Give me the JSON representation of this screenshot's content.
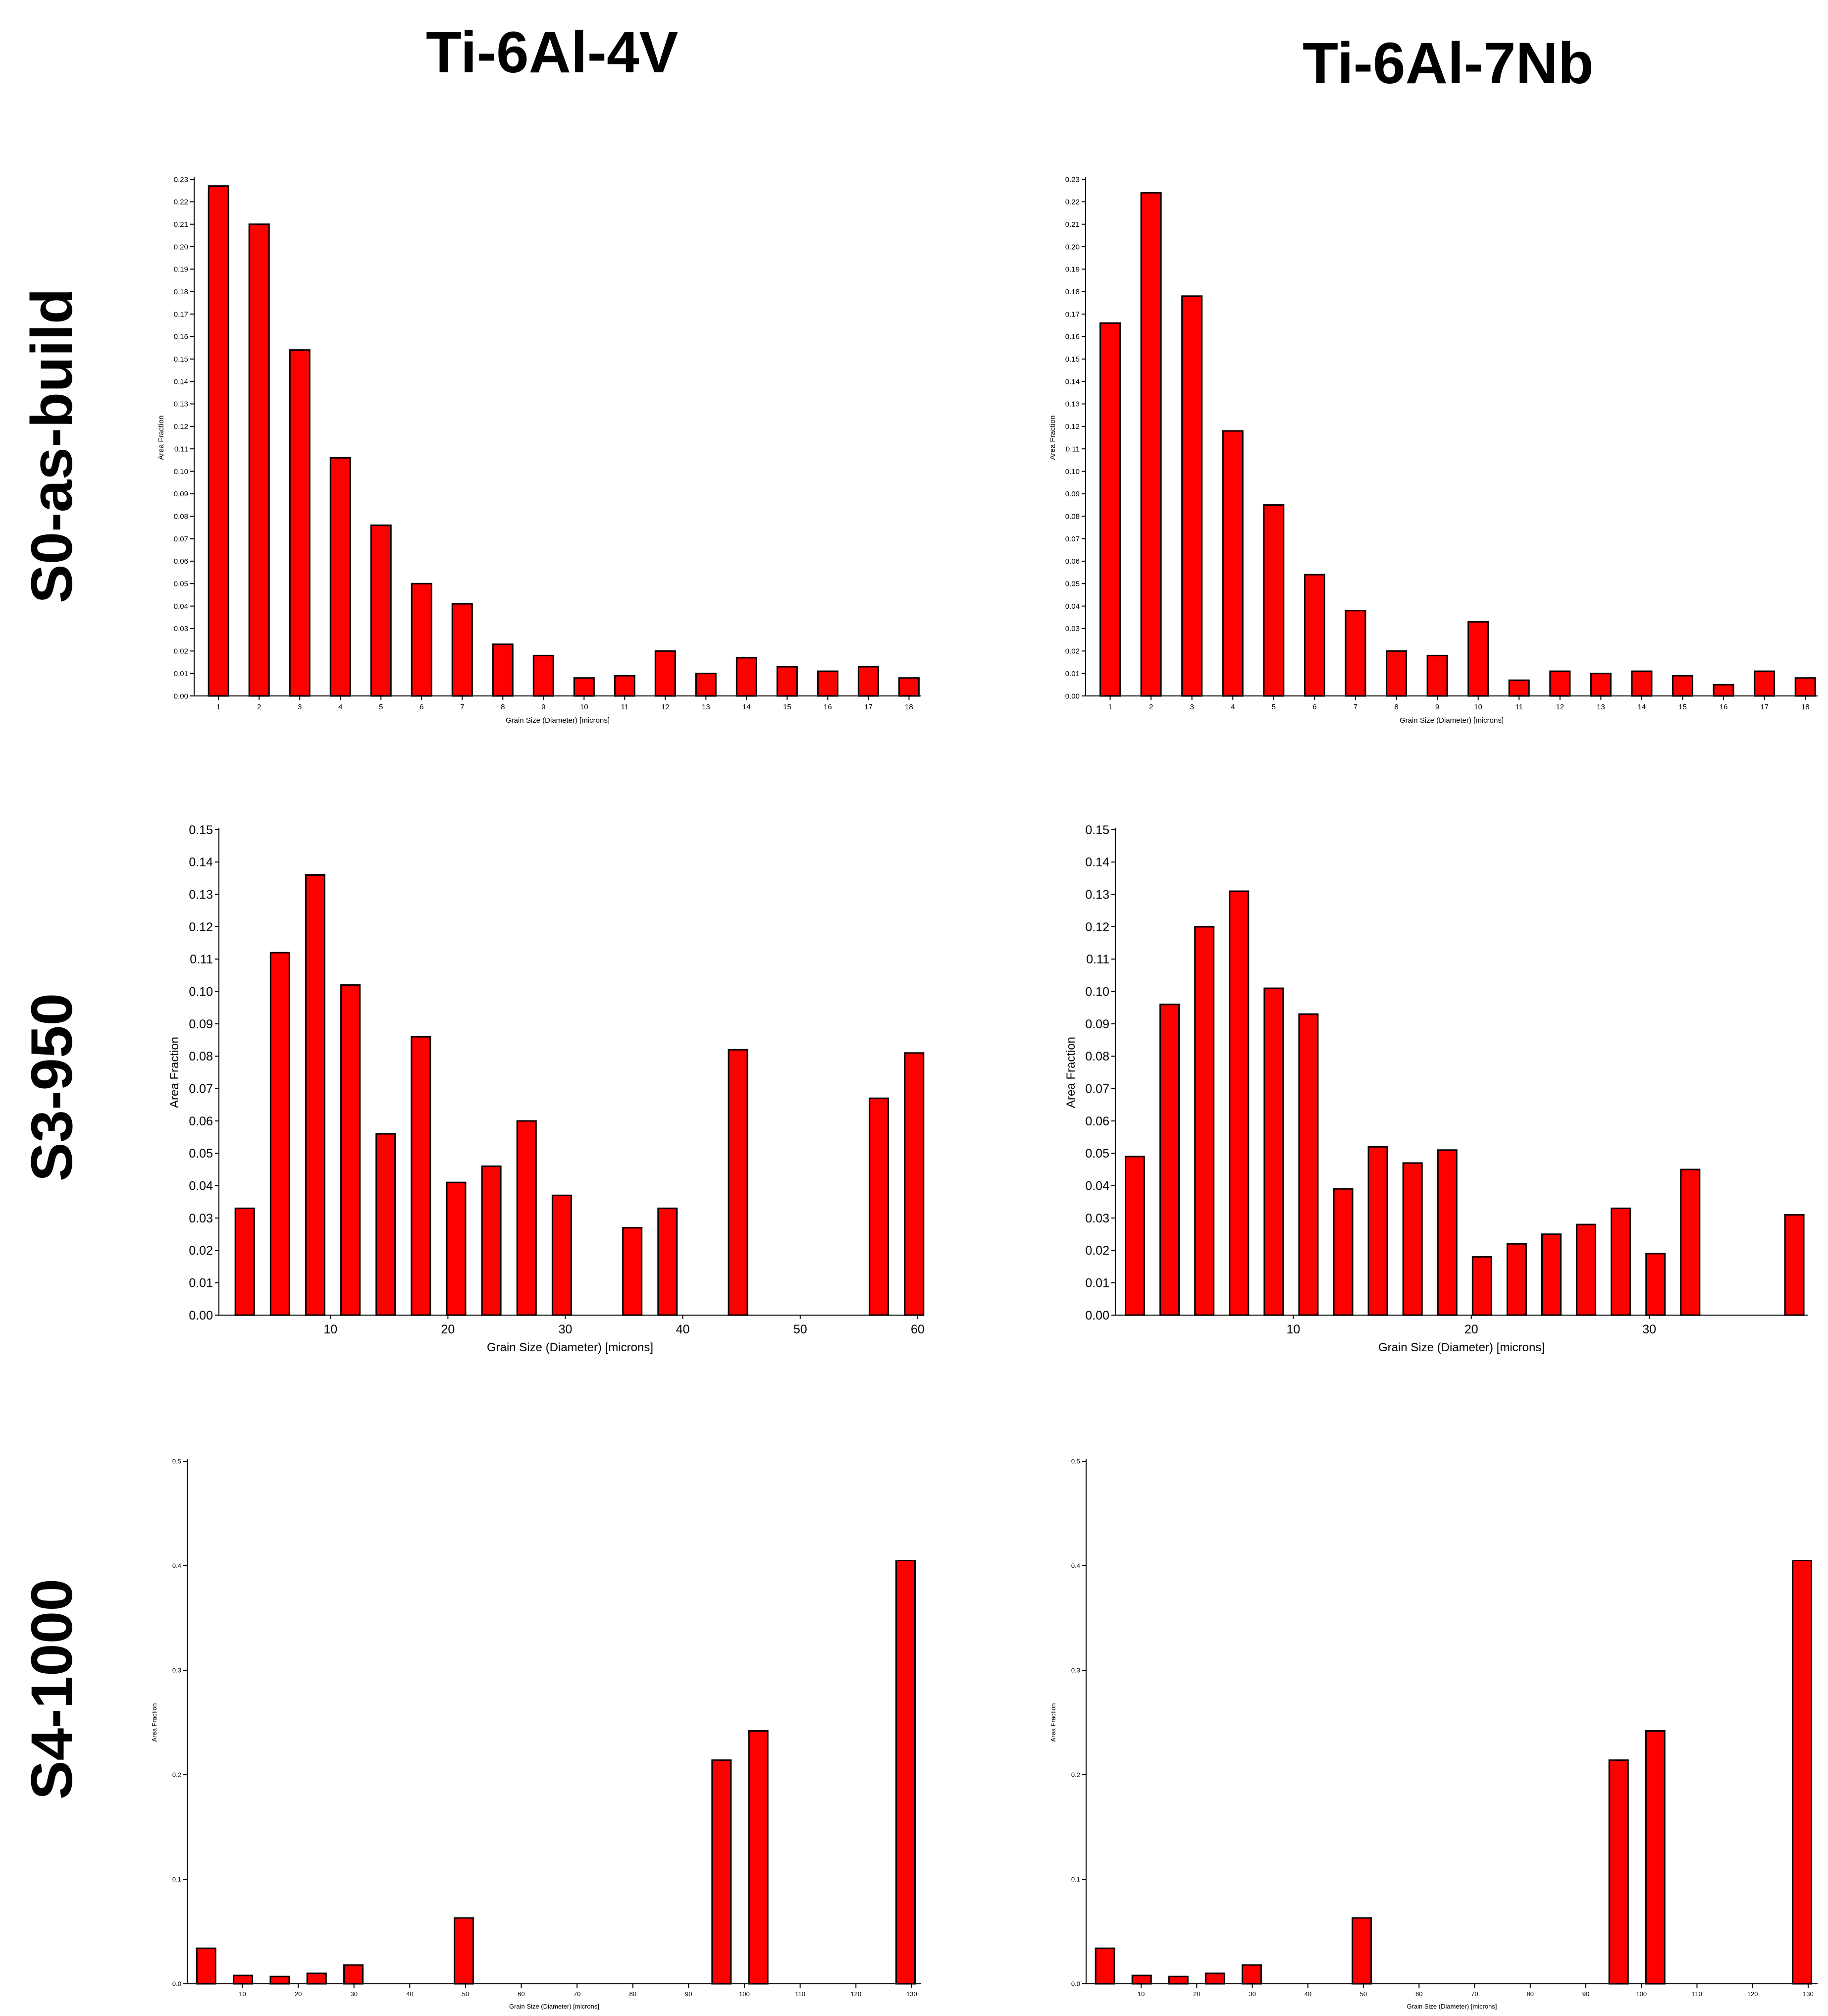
{
  "columns": [
    "Ti-6Al-4V",
    "Ti-6Al-7Nb"
  ],
  "rows": [
    "S0-as-build",
    "S3-950",
    "S4-1000"
  ],
  "colors": {
    "bar": "#ff0000",
    "bar_edge": "#000000",
    "axis": "#000000"
  },
  "chart_data": [
    {
      "type": "bar",
      "panel": "S0-as-build / Ti-6Al-4V",
      "xlabel": "Grain Size (Diameter) [microns]",
      "ylabel": "Area Fraction",
      "x": [
        1,
        2,
        3,
        4,
        5,
        6,
        7,
        8,
        9,
        10,
        11,
        12,
        13,
        14,
        15,
        16,
        17,
        18
      ],
      "values": [
        0.227,
        0.21,
        0.154,
        0.106,
        0.076,
        0.05,
        0.041,
        0.023,
        0.018,
        0.008,
        0.009,
        0.02,
        0.01,
        0.017,
        0.013,
        0.011,
        0.013,
        0.008
      ],
      "xlim": [
        0.4,
        18.3
      ],
      "ylim": [
        0,
        0.23
      ],
      "xticks": [
        1,
        2,
        3,
        4,
        5,
        6,
        7,
        8,
        9,
        10,
        11,
        12,
        13,
        14,
        15,
        16,
        17,
        18
      ],
      "xtick_labels": [
        "1",
        "2",
        "3",
        "4",
        "5",
        "6",
        "7",
        "8",
        "9",
        "10",
        "11",
        "12",
        "13",
        "14",
        "15",
        "16",
        "17",
        "18"
      ],
      "yticks": [
        0,
        0.01,
        0.02,
        0.03,
        0.04,
        0.05,
        0.06,
        0.07,
        0.08,
        0.09,
        0.1,
        0.11,
        0.12,
        0.13,
        0.14,
        0.15,
        0.16,
        0.17,
        0.18,
        0.19,
        0.2,
        0.21,
        0.22,
        0.23
      ],
      "ytick_labels": [
        "0.00",
        "0.01",
        "0.02",
        "0.03",
        "0.04",
        "0.05",
        "0.06",
        "0.07",
        "0.08",
        "0.09",
        "0.10",
        "0.11",
        "0.12",
        "0.13",
        "0.14",
        "0.15",
        "0.16",
        "0.17",
        "0.18",
        "0.19",
        "0.20",
        "0.21",
        "0.22",
        "0.23"
      ]
    },
    {
      "type": "bar",
      "panel": "S0-as-build / Ti-6Al-7Nb",
      "xlabel": "Grain Size (Diameter) [microns]",
      "ylabel": "Area Fraction",
      "x": [
        1,
        2,
        3,
        4,
        5,
        6,
        7,
        8,
        9,
        10,
        11,
        12,
        13,
        14,
        15,
        16,
        17,
        18
      ],
      "values": [
        0.166,
        0.224,
        0.178,
        0.118,
        0.085,
        0.054,
        0.038,
        0.02,
        0.018,
        0.033,
        0.007,
        0.011,
        0.01,
        0.011,
        0.009,
        0.005,
        0.011,
        0.008
      ],
      "xlim": [
        0.4,
        18.3
      ],
      "ylim": [
        0,
        0.23
      ],
      "xticks": [
        1,
        2,
        3,
        4,
        5,
        6,
        7,
        8,
        9,
        10,
        11,
        12,
        13,
        14,
        15,
        16,
        17,
        18
      ],
      "xtick_labels": [
        "1",
        "2",
        "3",
        "4",
        "5",
        "6",
        "7",
        "8",
        "9",
        "10",
        "11",
        "12",
        "13",
        "14",
        "15",
        "16",
        "17",
        "18"
      ],
      "yticks": [
        0,
        0.01,
        0.02,
        0.03,
        0.04,
        0.05,
        0.06,
        0.07,
        0.08,
        0.09,
        0.1,
        0.11,
        0.12,
        0.13,
        0.14,
        0.15,
        0.16,
        0.17,
        0.18,
        0.19,
        0.2,
        0.21,
        0.22,
        0.23
      ],
      "ytick_labels": [
        "0.00",
        "0.01",
        "0.02",
        "0.03",
        "0.04",
        "0.05",
        "0.06",
        "0.07",
        "0.08",
        "0.09",
        "0.10",
        "0.11",
        "0.12",
        "0.13",
        "0.14",
        "0.15",
        "0.16",
        "0.17",
        "0.18",
        "0.19",
        "0.20",
        "0.21",
        "0.22",
        "0.23"
      ]
    },
    {
      "type": "bar",
      "panel": "S3-950 / Ti-6Al-4V",
      "xlabel": "Grain Size (Diameter) [microns]",
      "ylabel": "Area Fraction",
      "x": [
        2.7,
        5.7,
        8.7,
        11.7,
        14.7,
        17.7,
        20.7,
        23.7,
        26.7,
        29.7,
        32.7,
        35.7,
        38.7,
        41.7,
        44.7,
        47.7,
        50.7,
        53.7,
        56.7,
        59.7
      ],
      "values": [
        0.033,
        0.112,
        0.136,
        0.102,
        0.056,
        0.086,
        0.041,
        0.046,
        0.06,
        0.037,
        0,
        0.027,
        0.033,
        0,
        0.082,
        0,
        0,
        0,
        0.067,
        0.081
      ],
      "xlim": [
        0.5,
        60.3
      ],
      "ylim": [
        0,
        0.15
      ],
      "xticks": [
        10,
        20,
        30,
        40,
        50,
        60
      ],
      "xtick_labels": [
        "10",
        "20",
        "30",
        "40",
        "50",
        "60"
      ],
      "yticks": [
        0,
        0.01,
        0.02,
        0.03,
        0.04,
        0.05,
        0.06,
        0.07,
        0.08,
        0.09,
        0.1,
        0.11,
        0.12,
        0.13,
        0.14,
        0.15
      ],
      "ytick_labels": [
        "0.00",
        "0.01",
        "0.02",
        "0.03",
        "0.04",
        "0.05",
        "0.06",
        "0.07",
        "0.08",
        "0.09",
        "0.10",
        "0.11",
        "0.12",
        "0.13",
        "0.14",
        "0.15"
      ]
    },
    {
      "type": "bar",
      "panel": "S3-950 / Ti-6Al-7Nb",
      "xlabel": "Grain Size (Diameter) [microns]",
      "ylabel": "Area Fraction",
      "x": [
        1.1,
        3.05,
        5.0,
        6.95,
        8.9,
        10.85,
        12.8,
        14.75,
        16.7,
        18.65,
        20.6,
        22.55,
        24.5,
        26.45,
        28.4,
        30.35,
        32.3,
        34.25,
        36.2,
        38.15
      ],
      "values": [
        0.049,
        0.096,
        0.12,
        0.131,
        0.101,
        0.093,
        0.039,
        0.052,
        0.047,
        0.051,
        0.018,
        0.022,
        0.025,
        0.028,
        0.033,
        0.019,
        0.045,
        0,
        0,
        0.031
      ],
      "xlim": [
        0.0,
        38.9
      ],
      "ylim": [
        0,
        0.15
      ],
      "xticks": [
        10,
        20,
        30
      ],
      "xtick_labels": [
        "10",
        "20",
        "30"
      ],
      "yticks": [
        0,
        0.01,
        0.02,
        0.03,
        0.04,
        0.05,
        0.06,
        0.07,
        0.08,
        0.09,
        0.1,
        0.11,
        0.12,
        0.13,
        0.14,
        0.15
      ],
      "ytick_labels": [
        "0.00",
        "0.01",
        "0.02",
        "0.03",
        "0.04",
        "0.05",
        "0.06",
        "0.07",
        "0.08",
        "0.09",
        "0.10",
        "0.11",
        "0.12",
        "0.13",
        "0.14",
        "0.15"
      ]
    },
    {
      "type": "bar",
      "panel": "S4-1000 / Ti-6Al-4V",
      "xlabel": "Grain Size (Diameter) [microns]",
      "ylabel": "Area Fraction",
      "x": [
        3.5,
        10.1,
        16.7,
        23.3,
        29.9,
        36.5,
        43.1,
        49.7,
        56.3,
        62.9,
        69.5,
        76.1,
        82.7,
        89.3,
        95.9,
        102.5,
        109.1,
        115.7,
        122.3,
        128.9
      ],
      "values": [
        0.034,
        0.008,
        0.007,
        0.01,
        0.018,
        0,
        0,
        0.063,
        0,
        0,
        0,
        0,
        0,
        0,
        0.214,
        0.242,
        0,
        0,
        0,
        0.405
      ],
      "xlim": [
        0.1,
        131.7
      ],
      "ylim": [
        0,
        0.5
      ],
      "xticks": [
        10,
        20,
        30,
        40,
        50,
        60,
        70,
        80,
        90,
        100,
        110,
        120,
        130
      ],
      "xtick_labels": [
        "10",
        "20",
        "30",
        "40",
        "50",
        "60",
        "70",
        "80",
        "90",
        "100",
        "110",
        "120",
        "130"
      ],
      "yticks": [
        0,
        0.1,
        0.2,
        0.3,
        0.4,
        0.5
      ],
      "ytick_labels": [
        "0.0",
        "0.1",
        "0.2",
        "0.3",
        "0.4",
        "0.5"
      ]
    },
    {
      "type": "bar",
      "panel": "S4-1000 / Ti-6Al-7Nb",
      "xlabel": "Grain Size (Diameter) [microns]",
      "ylabel": "Area Fraction",
      "x": [
        3.5,
        10.1,
        16.7,
        23.3,
        29.9,
        36.5,
        43.1,
        49.7,
        56.3,
        62.9,
        69.5,
        76.1,
        82.7,
        89.3,
        95.9,
        102.5,
        109.1,
        115.7,
        122.3,
        128.9
      ],
      "values": [
        0.034,
        0.008,
        0.007,
        0.01,
        0.018,
        0,
        0,
        0.063,
        0,
        0,
        0,
        0,
        0,
        0,
        0.214,
        0.242,
        0,
        0,
        0,
        0.405
      ],
      "xlim": [
        0.1,
        131.7
      ],
      "ylim": [
        0,
        0.5
      ],
      "xticks": [
        10,
        20,
        30,
        40,
        50,
        60,
        70,
        80,
        90,
        100,
        110,
        120,
        130
      ],
      "xtick_labels": [
        "10",
        "20",
        "30",
        "40",
        "50",
        "60",
        "70",
        "80",
        "90",
        "100",
        "110",
        "120",
        "130"
      ],
      "yticks": [
        0,
        0.1,
        0.2,
        0.3,
        0.4,
        0.5
      ],
      "ytick_labels": [
        "0.0",
        "0.1",
        "0.2",
        "0.3",
        "0.4",
        "0.5"
      ]
    }
  ]
}
